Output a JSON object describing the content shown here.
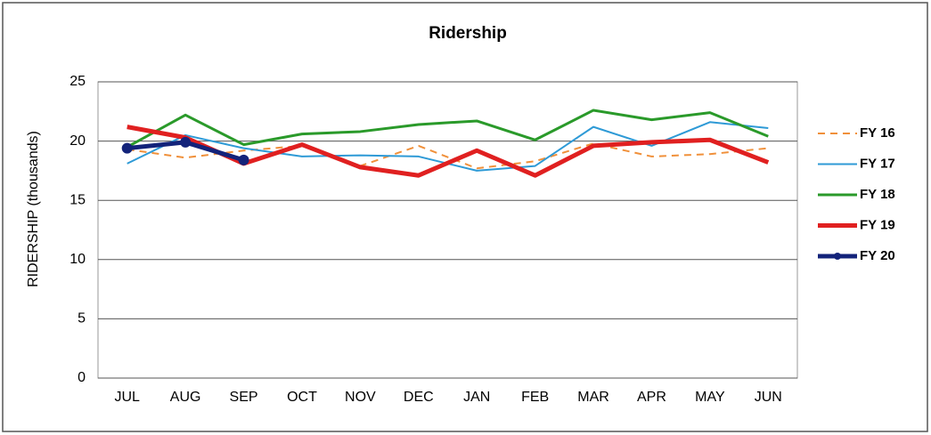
{
  "chart_data": {
    "type": "line",
    "title": "Ridership",
    "y_label": "RIDERSHIP (thousands)",
    "categories": [
      "JUL",
      "AUG",
      "SEP",
      "OCT",
      "NOV",
      "DEC",
      "JAN",
      "FEB",
      "MAR",
      "APR",
      "MAY",
      "JUN"
    ],
    "series": [
      {
        "name": "FY 16",
        "color": "#f0903a",
        "dash": true,
        "values": [
          19.3,
          18.6,
          19.2,
          19.6,
          17.9,
          19.6,
          17.7,
          18.3,
          19.8,
          18.7,
          18.9,
          19.4
        ]
      },
      {
        "name": "FY 17",
        "color": "#2e9ad6",
        "values": [
          18.1,
          20.5,
          19.4,
          18.7,
          18.8,
          18.7,
          17.5,
          17.9,
          21.2,
          19.6,
          21.6,
          21.1
        ]
      },
      {
        "name": "FY 18",
        "color": "#2a9a2a",
        "values": [
          19.5,
          22.2,
          19.7,
          20.6,
          20.8,
          21.4,
          21.7,
          20.1,
          22.6,
          21.8,
          22.4,
          20.4
        ]
      },
      {
        "name": "FY 19",
        "color": "#e02020",
        "values": [
          21.2,
          20.3,
          18.1,
          19.7,
          17.8,
          17.1,
          19.2,
          17.1,
          19.6,
          19.9,
          20.1,
          18.2
        ]
      },
      {
        "name": "FY 20",
        "color": "#13237a",
        "markers": true,
        "values": [
          19.4,
          19.9,
          18.4,
          null,
          null,
          null,
          null,
          null,
          null,
          null,
          null,
          null
        ]
      }
    ],
    "ylim": [
      0,
      25
    ],
    "yticks": [
      0,
      5,
      10,
      15,
      20,
      25
    ],
    "grid": true,
    "legend": "right"
  }
}
